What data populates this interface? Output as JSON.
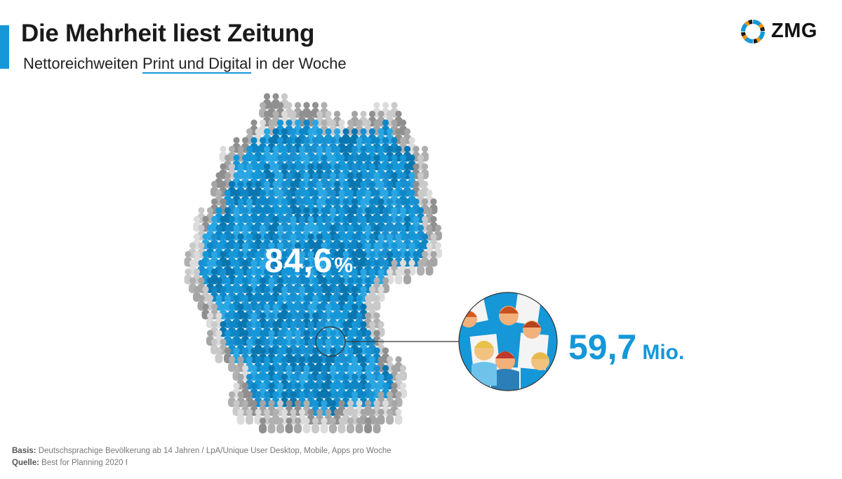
{
  "header": {
    "title": "Die Mehrheit liest Zeitung",
    "subtitle_prefix": "Nettoreichweiten ",
    "subtitle_highlight": "Print und Digital",
    "subtitle_suffix": " in der Woche"
  },
  "logo": {
    "text": "ZMG",
    "icon": "zmg-ring-icon"
  },
  "chart_data": {
    "type": "pictogram-map",
    "region": "Deutschland",
    "share_percent": 84.6,
    "share_label": "84,6",
    "share_unit": "%",
    "absolute_label": "59,7",
    "absolute_unit": "Mio.",
    "absolute_value_million": 59.7,
    "colors": {
      "reached": "#1597d8",
      "not_reached": "#b5b5b5",
      "accent": "#1597d8"
    }
  },
  "footer": {
    "basis_label": "Basis:",
    "basis_text": " Deutschsprachige Bevölkerung ab 14 Jahren / LpA/Unique User Desktop, Mobile, Apps pro Woche",
    "source_label": "Quelle:",
    "source_text": " Best for Planning 2020 I"
  }
}
